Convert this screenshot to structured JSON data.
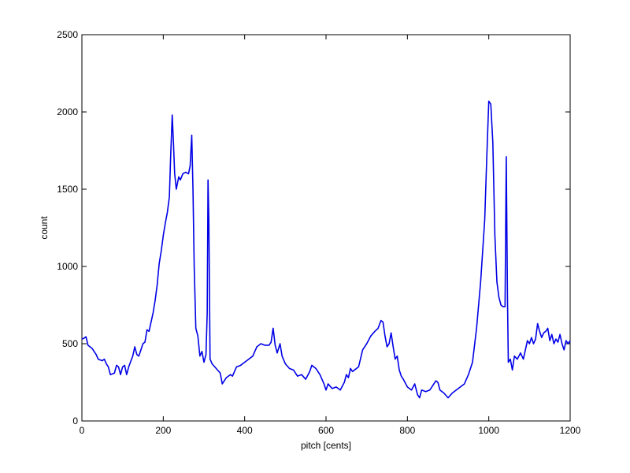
{
  "chart_data": {
    "type": "line",
    "xlabel": "pitch [cents]",
    "ylabel": "count",
    "color": "#0000e6",
    "xlim": [
      0,
      1200
    ],
    "xticks": [
      0,
      200,
      400,
      600,
      800,
      1000,
      1200
    ],
    "ylim": [
      0,
      2500
    ],
    "yticks": [
      0,
      500,
      1000,
      1500,
      2000,
      2500
    ],
    "x": [
      0,
      5,
      10,
      15,
      25,
      35,
      40,
      50,
      55,
      60,
      65,
      70,
      80,
      85,
      90,
      95,
      100,
      105,
      110,
      115,
      125,
      130,
      135,
      140,
      150,
      155,
      160,
      165,
      170,
      175,
      180,
      185,
      190,
      195,
      200,
      205,
      210,
      215,
      218,
      222,
      225,
      228,
      232,
      238,
      242,
      248,
      255,
      262,
      266,
      270,
      273,
      276,
      280,
      285,
      290,
      295,
      300,
      305,
      308,
      310,
      312,
      315,
      320,
      330,
      340,
      345,
      355,
      365,
      370,
      380,
      390,
      400,
      410,
      420,
      430,
      440,
      450,
      460,
      465,
      470,
      475,
      480,
      487,
      492,
      500,
      510,
      520,
      530,
      540,
      550,
      560,
      565,
      575,
      585,
      595,
      600,
      605,
      615,
      625,
      635,
      645,
      650,
      655,
      660,
      665,
      670,
      680,
      690,
      700,
      710,
      720,
      728,
      735,
      740,
      745,
      750,
      755,
      760,
      765,
      770,
      775,
      780,
      785,
      790,
      800,
      810,
      818,
      825,
      830,
      835,
      845,
      855,
      860,
      870,
      875,
      880,
      890,
      900,
      910,
      920,
      930,
      940,
      950,
      960,
      970,
      980,
      990,
      995,
      1000,
      1005,
      1010,
      1015,
      1020,
      1025,
      1030,
      1035,
      1040,
      1043,
      1046,
      1048,
      1053,
      1058,
      1063,
      1070,
      1078,
      1085,
      1095,
      1100,
      1105,
      1110,
      1115,
      1120,
      1125,
      1130,
      1135,
      1140,
      1145,
      1150,
      1155,
      1160,
      1165,
      1170,
      1175,
      1180,
      1185,
      1190,
      1195,
      1200
    ],
    "values": [
      530,
      535,
      545,
      490,
      470,
      430,
      400,
      390,
      400,
      370,
      350,
      300,
      310,
      360,
      350,
      300,
      350,
      360,
      300,
      350,
      420,
      480,
      430,
      420,
      500,
      510,
      590,
      580,
      640,
      700,
      780,
      880,
      1020,
      1100,
      1200,
      1280,
      1350,
      1450,
      1700,
      1980,
      1800,
      1600,
      1500,
      1580,
      1560,
      1600,
      1610,
      1600,
      1650,
      1850,
      1500,
      1000,
      600,
      550,
      420,
      450,
      380,
      430,
      700,
      1560,
      1300,
      400,
      370,
      340,
      310,
      240,
      280,
      300,
      290,
      350,
      360,
      380,
      400,
      420,
      480,
      500,
      490,
      490,
      510,
      600,
      490,
      440,
      500,
      420,
      370,
      340,
      330,
      290,
      300,
      270,
      320,
      360,
      340,
      300,
      240,
      200,
      240,
      210,
      220,
      200,
      250,
      300,
      280,
      340,
      320,
      330,
      350,
      460,
      500,
      550,
      580,
      600,
      650,
      640,
      550,
      480,
      500,
      570,
      480,
      400,
      420,
      330,
      290,
      270,
      220,
      200,
      240,
      170,
      150,
      200,
      190,
      200,
      220,
      260,
      250,
      200,
      180,
      150,
      180,
      200,
      220,
      240,
      300,
      380,
      600,
      900,
      1300,
      1700,
      2070,
      2050,
      1800,
      1200,
      900,
      800,
      750,
      740,
      740,
      1710,
      800,
      380,
      400,
      330,
      420,
      400,
      440,
      400,
      520,
      500,
      540,
      500,
      530,
      630,
      580,
      540,
      570,
      580,
      600,
      520,
      560,
      500,
      530,
      510,
      560,
      500,
      460,
      520,
      500,
      520
    ]
  }
}
